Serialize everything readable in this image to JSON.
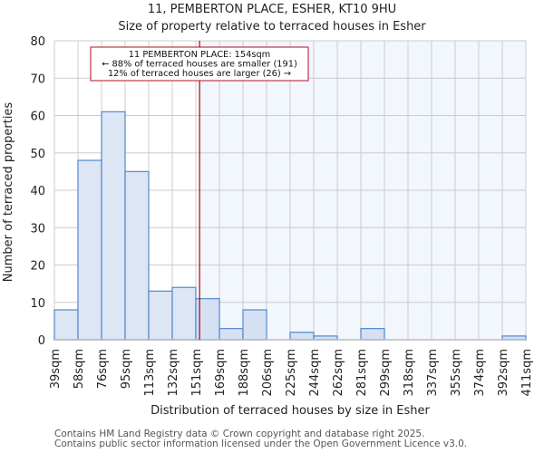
{
  "header": {
    "title": "11, PEMBERTON PLACE, ESHER, KT10 9HU",
    "subtitle": "Size of property relative to terraced houses in Esher"
  },
  "annotation": {
    "line1": "11 PEMBERTON PLACE: 154sqm",
    "line2": "← 88% of terraced houses are smaller (191)",
    "line3": "12% of terraced houses are larger (26) →"
  },
  "footer": {
    "line1": "Contains HM Land Registry data © Crown copyright and database right 2025.",
    "line2": "Contains public sector information licensed under the Open Government Licence v3.0."
  },
  "colors": {
    "bar_fill": "#dce6f4",
    "bar_fill_highlight": "#d5e0f2",
    "bar_stroke": "#5b8fd0",
    "marker_line": "#b01020",
    "shade": "#f2f6fd",
    "grid": "#cccccc"
  },
  "chart_data": {
    "type": "bar",
    "title": "11, PEMBERTON PLACE, ESHER, KT10 9HU",
    "subtitle": "Size of property relative to terraced houses in Esher",
    "xlabel": "Distribution of terraced houses by size in Esher",
    "ylabel": "Number of terraced properties",
    "ylim": [
      0,
      80
    ],
    "yticks": [
      0,
      10,
      20,
      30,
      40,
      50,
      60,
      70,
      80
    ],
    "categories": [
      "39sqm",
      "58sqm",
      "76sqm",
      "95sqm",
      "113sqm",
      "132sqm",
      "151sqm",
      "169sqm",
      "188sqm",
      "206sqm",
      "225sqm",
      "244sqm",
      "262sqm",
      "281sqm",
      "299sqm",
      "318sqm",
      "337sqm",
      "355sqm",
      "374sqm",
      "392sqm",
      "411sqm"
    ],
    "values": [
      8,
      48,
      61,
      45,
      13,
      14,
      11,
      3,
      8,
      0,
      2,
      1,
      0,
      3,
      0,
      0,
      0,
      0,
      0,
      1
    ],
    "marker": {
      "value": 154,
      "label": "11 PEMBERTON PLACE: 154sqm"
    },
    "grid": true,
    "legend": null
  }
}
